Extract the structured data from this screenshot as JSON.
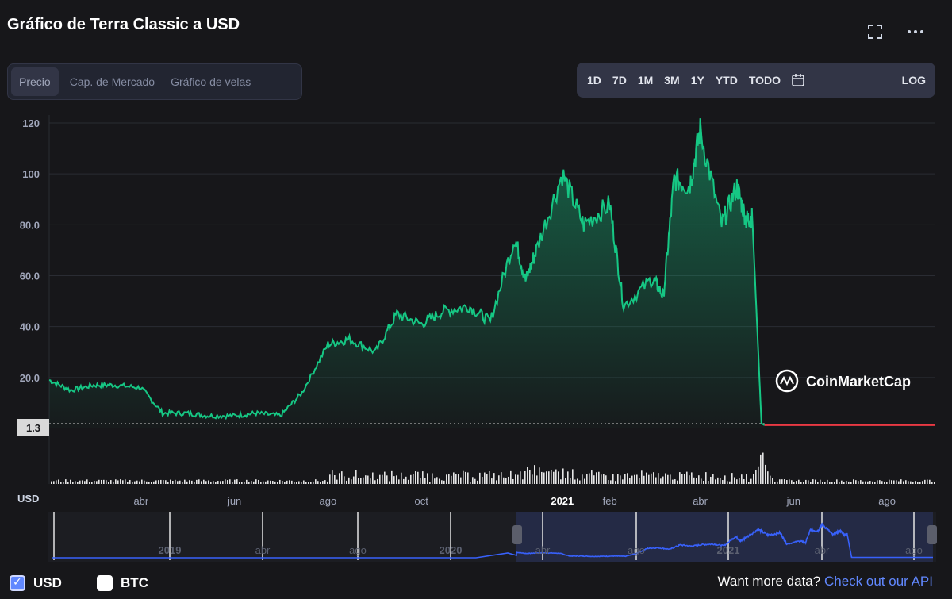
{
  "header": {
    "title": "Gráfico de Terra Classic a USD",
    "fullscreen_icon": "fullscreen-icon",
    "more_icon": "more-icon"
  },
  "tabs": [
    "Precio",
    "Cap. de Mercado",
    "Gráfico de velas"
  ],
  "active_tab": "Precio",
  "ranges": [
    "1D",
    "7D",
    "1M",
    "3M",
    "1Y",
    "YTD",
    "TODO"
  ],
  "calendar_icon": "calendar-icon",
  "log_label": "LOG",
  "watermark": "CoinMarketCap",
  "currency_label": "USD",
  "colors": {
    "line": "#16c784",
    "current_line": "#ea3943",
    "nav_line": "#3861fb",
    "background": "#17171a"
  },
  "chart_data": {
    "type": "area",
    "ylim": [
      0,
      120
    ],
    "yticks": [
      "120",
      "100",
      "80.0",
      "60.0",
      "40.0",
      "20.0"
    ],
    "current_price_label": "1.3",
    "current_price": 1.3,
    "x_labels": [
      "abr",
      "jun",
      "ago",
      "oct",
      "2021",
      "feb",
      "abr",
      "jun",
      "ago"
    ],
    "x_months": [
      "2020-04",
      "2020-06",
      "2020-08",
      "2020-10",
      "2021-01",
      "2021-02",
      "2021-04",
      "2021-06",
      "2021-08"
    ],
    "x_range": [
      "2020-02",
      "2021-09"
    ],
    "series": [
      {
        "x": [
          "2020-02-01",
          "2020-02-15",
          "2020-03-01",
          "2020-03-15",
          "2020-04-01",
          "2020-04-15",
          "2020-05-01",
          "2020-05-15",
          "2020-06-01",
          "2020-06-15",
          "2020-07-01",
          "2020-07-15",
          "2020-08-01",
          "2020-08-15",
          "2020-09-01",
          "2020-09-15",
          "2020-10-01",
          "2020-10-15",
          "2020-11-01",
          "2020-11-15",
          "2020-12-01",
          "2020-12-08",
          "2020-12-15",
          "2021-01-01",
          "2021-01-15",
          "2021-02-01",
          "2021-02-10",
          "2021-03-01",
          "2021-03-08",
          "2021-03-15",
          "2021-03-25",
          "2021-04-01",
          "2021-04-15",
          "2021-04-25",
          "2021-05-01",
          "2021-05-05",
          "2021-05-11",
          "2021-05-13",
          "2021-06-01",
          "2021-07-01",
          "2021-08-01",
          "2021-09-01"
        ],
        "y": [
          19,
          15,
          17,
          17,
          16,
          6,
          6,
          5,
          5,
          6,
          5,
          14,
          33,
          35,
          30,
          45,
          41,
          46,
          48,
          42,
          75,
          58,
          70,
          100,
          80,
          88,
          48,
          59,
          52,
          98,
          95,
          117,
          80,
          95,
          82,
          83,
          2,
          1.3,
          1.3,
          1.3,
          1.3,
          1.3
        ]
      }
    ],
    "navigator": {
      "labels": [
        "2019",
        "abr",
        "ago",
        "2020",
        "abr",
        "ago",
        "2021",
        "abr",
        "ago"
      ]
    }
  },
  "footer": {
    "usd_label": "USD",
    "btc_label": "BTC",
    "more_data_text": "Want more data?",
    "api_link": "Check out our API"
  }
}
